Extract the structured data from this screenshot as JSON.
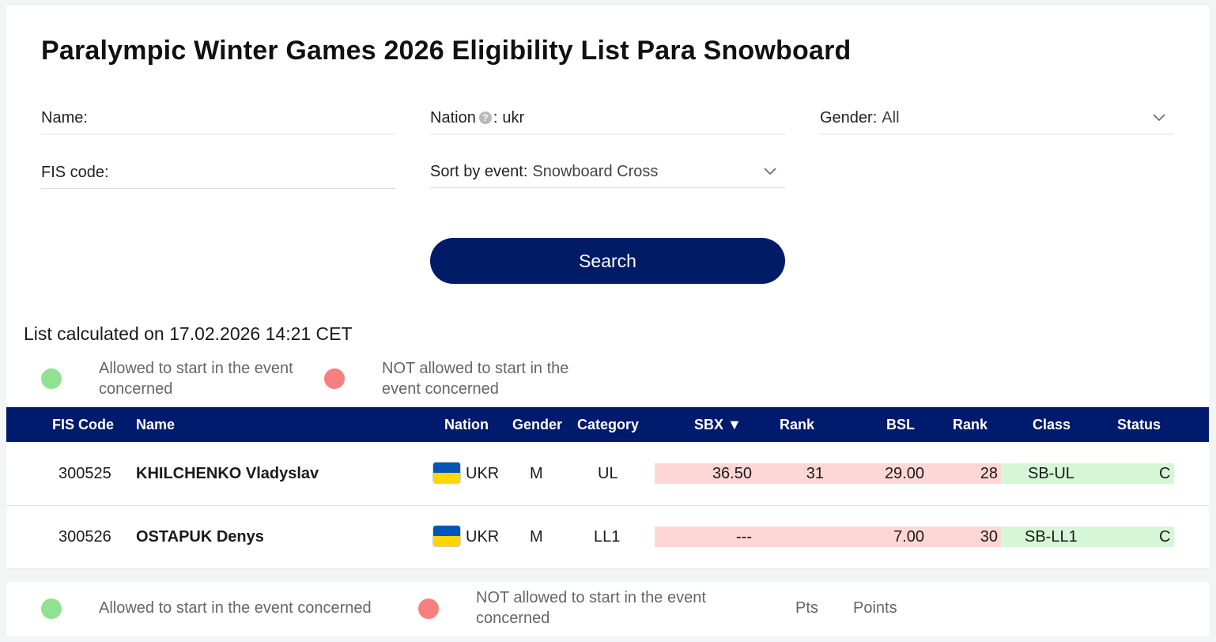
{
  "title": "Paralympic Winter Games 2026 Eligibility List Para Snowboard",
  "filters": {
    "name": {
      "label": "Name",
      "value": ""
    },
    "nation": {
      "label": "Nation",
      "help": "?",
      "value": "ukr"
    },
    "gender": {
      "label": "Gender",
      "value": "All"
    },
    "fis_code": {
      "label": "FIS code",
      "value": ""
    },
    "sort_by_event": {
      "label": "Sort by event",
      "value": "Snowboard Cross"
    }
  },
  "search_button": "Search",
  "calculated": "List calculated on 17.02.2026 14:21 CET",
  "legend_top": {
    "allowed": "Allowed to start in the event concerned",
    "not_allowed": "NOT allowed to start in the event concerned"
  },
  "table": {
    "headers": {
      "fis_code": "FIS Code",
      "name": "Name",
      "nation": "Nation",
      "gender": "Gender",
      "category": "Category",
      "sbx": "SBX ▼",
      "rank1": "Rank",
      "bsl": "BSL",
      "rank2": "Rank",
      "class": "Class",
      "status": "Status"
    },
    "rows": [
      {
        "fis_code": "300525",
        "name": "KHILCHENKO Vladyslav",
        "nation": "UKR",
        "gender": "M",
        "category": "UL",
        "sbx": "36.50",
        "sbx_rank": "31",
        "bsl": "29.00",
        "bsl_rank": "28",
        "class": "SB-UL",
        "status": "C"
      },
      {
        "fis_code": "300526",
        "name": "OSTAPUK Denys",
        "nation": "UKR",
        "gender": "M",
        "category": "LL1",
        "sbx": "---",
        "sbx_rank": "",
        "bsl": "7.00",
        "bsl_rank": "30",
        "class": "SB-LL1",
        "status": "C"
      }
    ]
  },
  "legend_bottom": {
    "allowed": "Allowed to start in the event concerned",
    "not_allowed": "NOT allowed to start in the event concerned",
    "pts_abbr": "Pts",
    "pts_full": "Points"
  },
  "colors": {
    "header_bg": "#001a6e",
    "button_bg": "#021b66",
    "allowed": "#90e290",
    "not_allowed": "#f77f7f",
    "not_allowed_cell": "#ffd6d6",
    "allowed_cell": "#d6f7d6"
  },
  "icons": {
    "dropdown": "chevron-down-icon",
    "help": "help-icon",
    "flag": "ukraine-flag-icon"
  }
}
